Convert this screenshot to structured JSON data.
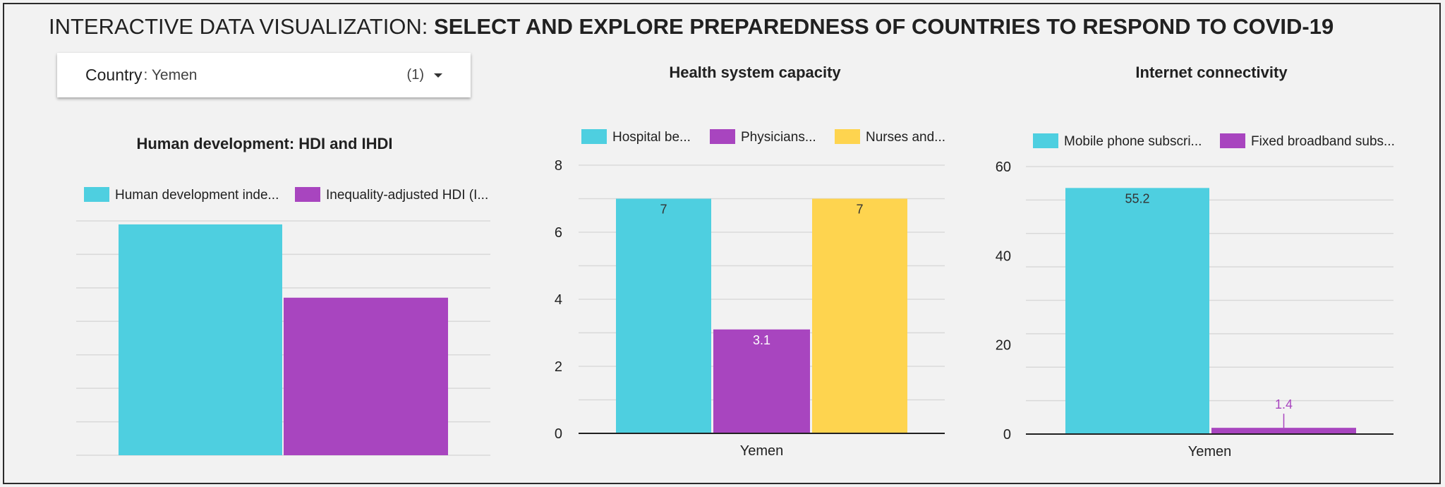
{
  "title": {
    "prefix": "INTERACTIVE DATA VISUALIZATION: ",
    "main": "SELECT AND EXPLORE PREPAREDNESS OF COUNTRIES TO RESPOND TO COVID-19"
  },
  "filter": {
    "label": "Country",
    "value": ": Yemen",
    "count": "(1)",
    "icon": "dropdown-caret"
  },
  "colors": {
    "cyan": "#4ecfe0",
    "purple": "#a845bf",
    "yellow": "#fed44f",
    "grid": "#d9d9d9",
    "axis": "#212121",
    "text": "#212121"
  },
  "chart_data": [
    {
      "type": "bar",
      "title": "Human development: HDI and IHDI",
      "categories": [
        ""
      ],
      "series": [
        {
          "name": "Human development inde...",
          "values": [
            0.463
          ]
        },
        {
          "name": "Inequality-adjusted HDI (I...",
          "values": [
            0.316
          ]
        }
      ],
      "ylim": [
        0,
        0.47
      ],
      "yticks": [],
      "grid": true,
      "legend": "top"
    },
    {
      "type": "bar",
      "title": "Health system capacity",
      "categories": [
        "Yemen"
      ],
      "series": [
        {
          "name": "Hospital be...",
          "values": [
            7
          ],
          "labels": [
            "7"
          ]
        },
        {
          "name": "Physicians...",
          "values": [
            3.1
          ],
          "labels": [
            "3.1"
          ]
        },
        {
          "name": "Nurses and...",
          "values": [
            7
          ],
          "labels": [
            "7"
          ]
        }
      ],
      "ylim": [
        0,
        8
      ],
      "yticks": [
        "0",
        "2",
        "4",
        "6",
        "8"
      ],
      "grid": true,
      "legend": "top"
    },
    {
      "type": "bar",
      "title": "Internet connectivity",
      "categories": [
        "Yemen"
      ],
      "series": [
        {
          "name": "Mobile phone subscri...",
          "values": [
            55.2
          ],
          "labels": [
            "55.2"
          ]
        },
        {
          "name": "Fixed broadband subs...",
          "values": [
            1.4
          ],
          "labels": [
            "1.4"
          ]
        }
      ],
      "ylim": [
        0,
        60
      ],
      "yticks": [
        "0",
        "20",
        "40",
        "60"
      ],
      "grid": true,
      "legend": "top"
    }
  ]
}
